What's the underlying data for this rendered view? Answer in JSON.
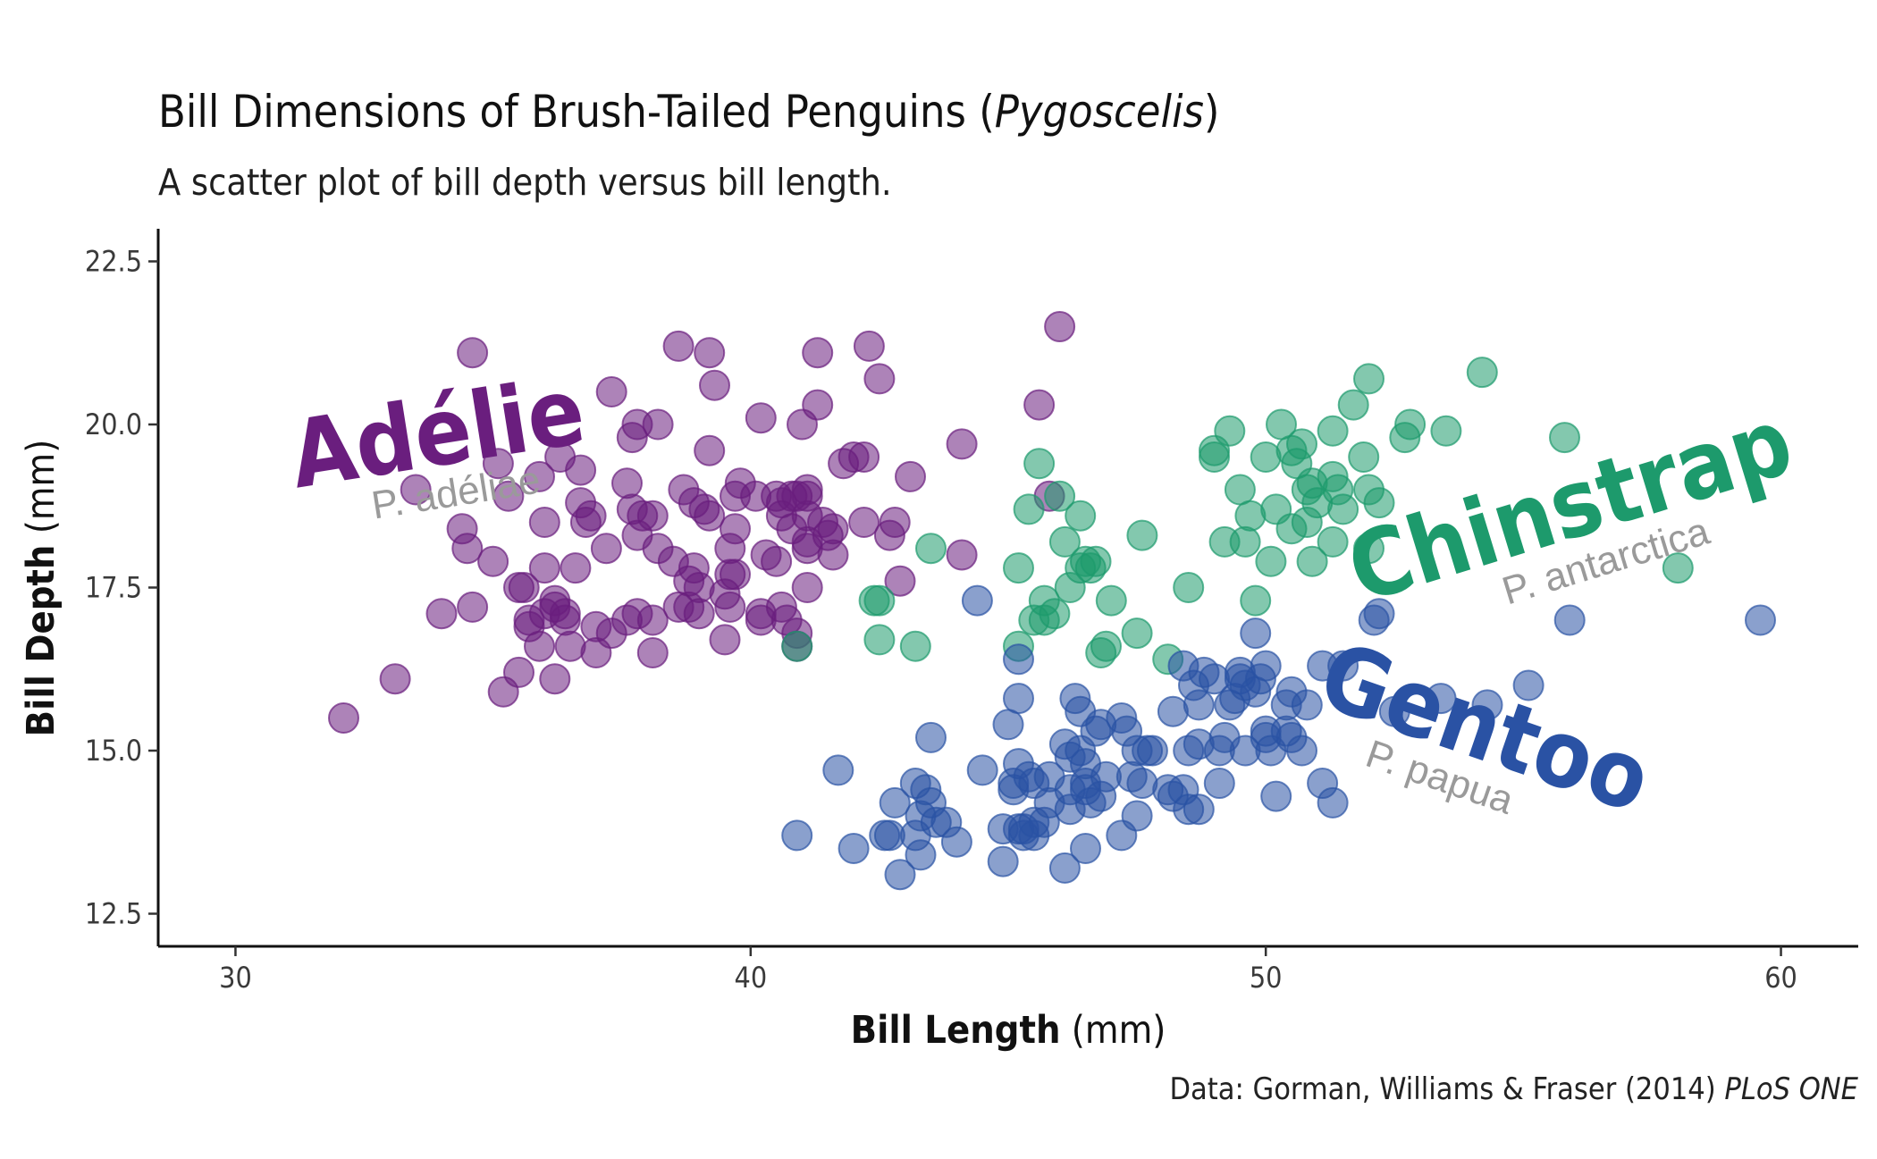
{
  "chart_data": {
    "type": "scatter",
    "title": "Bill Dimensions of Brush-Tailed Penguins (",
    "title_italic": "Pygoscelis",
    "title_end": ")",
    "subtitle": "A scatter plot of bill depth versus bill length.",
    "xlabel_bold": "Bill Length",
    "xlabel_unit": "(mm)",
    "ylabel_bold": "Bill Depth",
    "ylabel_unit": "(mm)",
    "xlim": [
      28.5,
      61.5
    ],
    "ylim": [
      12.0,
      23.0
    ],
    "xticks": [
      30,
      40,
      50,
      60
    ],
    "yticks": [
      12.5,
      15.0,
      17.5,
      20.0,
      22.5
    ],
    "xtick_labels": [
      "30",
      "40",
      "50",
      "60"
    ],
    "ytick_labels": [
      "12.5",
      "15.0",
      "17.5",
      "20.0",
      "22.5"
    ],
    "grid": false,
    "legend": "none",
    "caption": "Data: Gorman, Williams & Fraser (2014) ",
    "caption_italic": "PLoS ONE",
    "series": [
      {
        "name": "Adélie",
        "scientific": "P. adéliae",
        "color": "#6a1e7e",
        "points": [
          [
            32.1,
            15.5
          ],
          [
            33.1,
            16.1
          ],
          [
            33.5,
            19.0
          ],
          [
            34.0,
            17.1
          ],
          [
            34.4,
            18.4
          ],
          [
            34.5,
            18.1
          ],
          [
            34.6,
            17.2
          ],
          [
            34.6,
            21.1
          ],
          [
            35.0,
            17.9
          ],
          [
            35.1,
            19.4
          ],
          [
            35.2,
            15.9
          ],
          [
            35.3,
            18.9
          ],
          [
            35.5,
            16.2
          ],
          [
            35.5,
            17.5
          ],
          [
            35.6,
            17.5
          ],
          [
            35.7,
            16.9
          ],
          [
            35.7,
            17.0
          ],
          [
            35.9,
            16.6
          ],
          [
            35.9,
            19.2
          ],
          [
            36.0,
            17.1
          ],
          [
            36.0,
            17.8
          ],
          [
            36.0,
            18.5
          ],
          [
            36.2,
            16.1
          ],
          [
            36.2,
            17.2
          ],
          [
            36.2,
            17.3
          ],
          [
            36.3,
            19.5
          ],
          [
            36.4,
            17.0
          ],
          [
            36.4,
            17.1
          ],
          [
            36.5,
            16.6
          ],
          [
            36.6,
            17.8
          ],
          [
            36.7,
            18.8
          ],
          [
            36.7,
            19.3
          ],
          [
            36.8,
            18.5
          ],
          [
            36.9,
            18.6
          ],
          [
            37.0,
            16.5
          ],
          [
            37.0,
            16.9
          ],
          [
            37.2,
            18.1
          ],
          [
            37.3,
            16.8
          ],
          [
            37.3,
            20.5
          ],
          [
            37.6,
            17.0
          ],
          [
            37.6,
            19.1
          ],
          [
            37.7,
            18.7
          ],
          [
            37.7,
            19.8
          ],
          [
            37.8,
            17.1
          ],
          [
            37.8,
            18.3
          ],
          [
            37.8,
            20.0
          ],
          [
            37.9,
            18.6
          ],
          [
            38.1,
            16.5
          ],
          [
            38.1,
            17.0
          ],
          [
            38.1,
            18.6
          ],
          [
            38.2,
            18.1
          ],
          [
            38.2,
            20.0
          ],
          [
            38.5,
            17.9
          ],
          [
            38.6,
            17.2
          ],
          [
            38.6,
            21.2
          ],
          [
            38.7,
            19.0
          ],
          [
            38.8,
            17.2
          ],
          [
            38.8,
            17.6
          ],
          [
            38.9,
            17.8
          ],
          [
            38.9,
            18.8
          ],
          [
            39.0,
            17.1
          ],
          [
            39.0,
            17.5
          ],
          [
            39.1,
            18.7
          ],
          [
            39.2,
            18.6
          ],
          [
            39.2,
            19.6
          ],
          [
            39.2,
            21.1
          ],
          [
            39.3,
            20.6
          ],
          [
            39.5,
            16.7
          ],
          [
            39.5,
            17.4
          ],
          [
            39.6,
            17.2
          ],
          [
            39.6,
            17.7
          ],
          [
            39.6,
            18.1
          ],
          [
            39.7,
            17.7
          ],
          [
            39.7,
            18.4
          ],
          [
            39.7,
            18.9
          ],
          [
            39.8,
            19.1
          ],
          [
            40.1,
            18.9
          ],
          [
            40.2,
            17.0
          ],
          [
            40.2,
            17.1
          ],
          [
            40.2,
            20.1
          ],
          [
            40.3,
            18.0
          ],
          [
            40.5,
            17.9
          ],
          [
            40.5,
            18.9
          ],
          [
            40.6,
            17.2
          ],
          [
            40.6,
            18.6
          ],
          [
            40.6,
            18.8
          ],
          [
            40.7,
            17.0
          ],
          [
            40.8,
            18.4
          ],
          [
            40.8,
            18.9
          ],
          [
            40.9,
            16.6
          ],
          [
            40.9,
            16.8
          ],
          [
            40.9,
            18.9
          ],
          [
            41.0,
            20.0
          ],
          [
            41.1,
            17.5
          ],
          [
            41.1,
            18.1
          ],
          [
            41.1,
            18.2
          ],
          [
            41.1,
            18.6
          ],
          [
            41.1,
            18.9
          ],
          [
            41.1,
            19.0
          ],
          [
            41.3,
            20.3
          ],
          [
            41.3,
            21.1
          ],
          [
            41.4,
            18.5
          ],
          [
            41.5,
            18.3
          ],
          [
            41.6,
            18.0
          ],
          [
            41.6,
            18.4
          ],
          [
            41.8,
            19.4
          ],
          [
            42.0,
            19.5
          ],
          [
            42.2,
            18.5
          ],
          [
            42.2,
            19.5
          ],
          [
            42.3,
            21.2
          ],
          [
            42.5,
            20.7
          ],
          [
            42.7,
            18.3
          ],
          [
            42.8,
            18.5
          ],
          [
            42.9,
            17.6
          ],
          [
            43.1,
            19.2
          ],
          [
            44.1,
            18.0
          ],
          [
            44.1,
            19.7
          ],
          [
            45.6,
            20.3
          ],
          [
            45.8,
            18.9
          ],
          [
            46.0,
            21.5
          ]
        ]
      },
      {
        "name": "Chinstrap",
        "scientific": "P. antarctica",
        "color": "#1d9a6c",
        "points": [
          [
            40.9,
            16.6
          ],
          [
            42.4,
            17.3
          ],
          [
            42.5,
            16.7
          ],
          [
            42.5,
            17.3
          ],
          [
            43.2,
            16.6
          ],
          [
            43.5,
            18.1
          ],
          [
            45.2,
            16.6
          ],
          [
            45.2,
            17.8
          ],
          [
            45.4,
            18.7
          ],
          [
            45.5,
            17.0
          ],
          [
            45.6,
            19.4
          ],
          [
            45.7,
            17.0
          ],
          [
            45.7,
            17.3
          ],
          [
            45.9,
            17.1
          ],
          [
            46.0,
            18.9
          ],
          [
            46.1,
            18.2
          ],
          [
            46.2,
            17.5
          ],
          [
            46.4,
            17.8
          ],
          [
            46.4,
            18.6
          ],
          [
            46.5,
            17.9
          ],
          [
            46.6,
            17.8
          ],
          [
            46.7,
            17.9
          ],
          [
            46.8,
            16.5
          ],
          [
            46.9,
            16.6
          ],
          [
            47.0,
            17.3
          ],
          [
            47.5,
            16.8
          ],
          [
            47.6,
            18.3
          ],
          [
            48.1,
            16.4
          ],
          [
            48.5,
            17.5
          ],
          [
            49.0,
            19.5
          ],
          [
            49.0,
            19.6
          ],
          [
            49.2,
            18.2
          ],
          [
            49.3,
            19.9
          ],
          [
            49.5,
            19.0
          ],
          [
            49.6,
            18.2
          ],
          [
            49.7,
            18.6
          ],
          [
            49.8,
            17.3
          ],
          [
            50.0,
            19.5
          ],
          [
            50.1,
            17.9
          ],
          [
            50.2,
            18.7
          ],
          [
            50.3,
            20.0
          ],
          [
            50.5,
            18.4
          ],
          [
            50.5,
            19.6
          ],
          [
            50.6,
            19.4
          ],
          [
            50.7,
            19.7
          ],
          [
            50.8,
            18.5
          ],
          [
            50.8,
            19.0
          ],
          [
            50.9,
            17.9
          ],
          [
            50.9,
            19.1
          ],
          [
            51.0,
            18.8
          ],
          [
            51.3,
            18.2
          ],
          [
            51.3,
            19.2
          ],
          [
            51.3,
            19.9
          ],
          [
            51.4,
            19.0
          ],
          [
            51.5,
            18.7
          ],
          [
            51.7,
            20.3
          ],
          [
            51.9,
            19.5
          ],
          [
            52.0,
            18.1
          ],
          [
            52.0,
            19.0
          ],
          [
            52.0,
            20.7
          ],
          [
            52.2,
            18.8
          ],
          [
            52.7,
            19.8
          ],
          [
            52.8,
            20.0
          ],
          [
            53.5,
            19.9
          ],
          [
            54.2,
            20.8
          ],
          [
            55.8,
            19.8
          ],
          [
            58.0,
            17.8
          ]
        ]
      },
      {
        "name": "Gentoo",
        "scientific": "P. papua",
        "color": "#2a52a4",
        "points": [
          [
            40.9,
            13.7
          ],
          [
            41.7,
            14.7
          ],
          [
            42.0,
            13.5
          ],
          [
            42.6,
            13.7
          ],
          [
            42.7,
            13.7
          ],
          [
            42.8,
            14.2
          ],
          [
            42.9,
            13.1
          ],
          [
            43.2,
            13.7
          ],
          [
            43.2,
            14.5
          ],
          [
            43.3,
            13.4
          ],
          [
            43.3,
            14.0
          ],
          [
            43.4,
            14.4
          ],
          [
            43.5,
            14.2
          ],
          [
            43.5,
            15.2
          ],
          [
            43.6,
            13.9
          ],
          [
            43.8,
            13.9
          ],
          [
            44.0,
            13.6
          ],
          [
            44.4,
            17.3
          ],
          [
            44.5,
            14.7
          ],
          [
            44.9,
            13.3
          ],
          [
            44.9,
            13.8
          ],
          [
            45.0,
            15.4
          ],
          [
            45.1,
            14.4
          ],
          [
            45.1,
            14.5
          ],
          [
            45.2,
            13.8
          ],
          [
            45.2,
            14.8
          ],
          [
            45.2,
            15.8
          ],
          [
            45.2,
            16.4
          ],
          [
            45.3,
            13.7
          ],
          [
            45.3,
            13.8
          ],
          [
            45.4,
            14.6
          ],
          [
            45.5,
            13.7
          ],
          [
            45.5,
            13.9
          ],
          [
            45.5,
            14.5
          ],
          [
            45.7,
            13.9
          ],
          [
            45.8,
            14.2
          ],
          [
            45.8,
            14.6
          ],
          [
            46.1,
            13.2
          ],
          [
            46.1,
            15.1
          ],
          [
            46.2,
            14.1
          ],
          [
            46.2,
            14.4
          ],
          [
            46.2,
            14.9
          ],
          [
            46.3,
            15.8
          ],
          [
            46.4,
            15.0
          ],
          [
            46.4,
            15.6
          ],
          [
            46.5,
            13.5
          ],
          [
            46.5,
            14.4
          ],
          [
            46.5,
            14.5
          ],
          [
            46.5,
            14.8
          ],
          [
            46.6,
            14.2
          ],
          [
            46.7,
            15.3
          ],
          [
            46.8,
            14.3
          ],
          [
            46.8,
            15.4
          ],
          [
            46.9,
            14.6
          ],
          [
            47.2,
            13.7
          ],
          [
            47.2,
            15.5
          ],
          [
            47.3,
            15.3
          ],
          [
            47.4,
            14.6
          ],
          [
            47.5,
            14.0
          ],
          [
            47.5,
            15.0
          ],
          [
            47.6,
            14.5
          ],
          [
            47.7,
            15.0
          ],
          [
            47.8,
            15.0
          ],
          [
            48.1,
            14.4
          ],
          [
            48.2,
            14.3
          ],
          [
            48.2,
            15.6
          ],
          [
            48.4,
            14.4
          ],
          [
            48.4,
            16.3
          ],
          [
            48.5,
            14.1
          ],
          [
            48.5,
            15.0
          ],
          [
            48.6,
            16.0
          ],
          [
            48.7,
            14.1
          ],
          [
            48.7,
            15.1
          ],
          [
            48.7,
            15.7
          ],
          [
            48.8,
            16.2
          ],
          [
            49.0,
            16.1
          ],
          [
            49.1,
            14.5
          ],
          [
            49.1,
            15.0
          ],
          [
            49.2,
            15.2
          ],
          [
            49.3,
            15.7
          ],
          [
            49.4,
            15.8
          ],
          [
            49.5,
            16.1
          ],
          [
            49.5,
            16.2
          ],
          [
            49.6,
            15.0
          ],
          [
            49.6,
            16.0
          ],
          [
            49.8,
            15.9
          ],
          [
            49.8,
            16.8
          ],
          [
            49.9,
            16.1
          ],
          [
            50.0,
            15.2
          ],
          [
            50.0,
            15.3
          ],
          [
            50.0,
            16.3
          ],
          [
            50.1,
            15.0
          ],
          [
            50.2,
            14.3
          ],
          [
            50.4,
            15.3
          ],
          [
            50.4,
            15.7
          ],
          [
            50.5,
            15.2
          ],
          [
            50.5,
            15.9
          ],
          [
            50.7,
            15.0
          ],
          [
            50.8,
            15.7
          ],
          [
            51.1,
            14.5
          ],
          [
            51.1,
            16.3
          ],
          [
            51.3,
            14.2
          ],
          [
            51.5,
            16.3
          ],
          [
            52.1,
            17.0
          ],
          [
            52.2,
            17.1
          ],
          [
            52.5,
            15.6
          ],
          [
            53.4,
            15.8
          ],
          [
            54.3,
            15.7
          ],
          [
            55.1,
            16.0
          ],
          [
            55.9,
            17.0
          ],
          [
            59.6,
            17.0
          ]
        ]
      }
    ]
  }
}
